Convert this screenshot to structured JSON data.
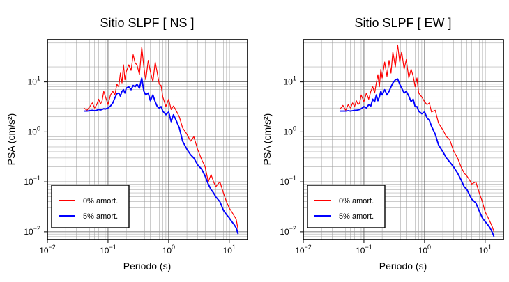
{
  "chart_data": [
    {
      "type": "line",
      "title": "Sitio SLPF [ NS ]",
      "xlabel": "Periodo (s)",
      "ylabel": "PSA (cm/s²)",
      "xscale": "log",
      "yscale": "log",
      "xlim": [
        0.01,
        20
      ],
      "ylim": [
        0.007,
        70
      ],
      "grid": true,
      "legend_position": "bottom-left",
      "x_ticks": [
        {
          "value": 0.01,
          "base": "10",
          "exp": "−2"
        },
        {
          "value": 0.1,
          "base": "10",
          "exp": "−1"
        },
        {
          "value": 1,
          "base": "10",
          "exp": "0"
        },
        {
          "value": 10,
          "base": "10",
          "exp": "1"
        }
      ],
      "y_ticks": [
        {
          "value": 0.01,
          "base": "10",
          "exp": "−2"
        },
        {
          "value": 0.1,
          "base": "10",
          "exp": "−1"
        },
        {
          "value": 1,
          "base": "10",
          "exp": "0"
        },
        {
          "value": 10,
          "base": "10",
          "exp": "1"
        }
      ],
      "series": [
        {
          "name": "0% amort.",
          "color": "#ff0000",
          "x": [
            0.04,
            0.045,
            0.05,
            0.055,
            0.06,
            0.065,
            0.07,
            0.075,
            0.08,
            0.085,
            0.09,
            0.1,
            0.11,
            0.12,
            0.13,
            0.14,
            0.15,
            0.16,
            0.17,
            0.18,
            0.19,
            0.2,
            0.22,
            0.24,
            0.26,
            0.28,
            0.3,
            0.33,
            0.36,
            0.39,
            0.42,
            0.46,
            0.5,
            0.55,
            0.6,
            0.65,
            0.7,
            0.75,
            0.8,
            0.9,
            1.0,
            1.1,
            1.2,
            1.3,
            1.5,
            1.7,
            2.0,
            2.3,
            2.6,
            3.0,
            3.5,
            4.0,
            4.5,
            5.0,
            5.5,
            6.0,
            7.0,
            8.0,
            9.0,
            10.0,
            11.0,
            12.0,
            13.0,
            14.0
          ],
          "y": [
            3.0,
            2.7,
            3.2,
            3.8,
            3.0,
            3.5,
            4.5,
            3.6,
            4.2,
            6.5,
            5.2,
            3.5,
            5.5,
            6.5,
            5.5,
            9.0,
            8.0,
            15.0,
            9.5,
            22.0,
            11.0,
            16.0,
            22.0,
            17.0,
            35.0,
            24.0,
            22.0,
            14.0,
            50.0,
            20.0,
            11.0,
            27.0,
            16.0,
            10.0,
            25.0,
            15.0,
            9.0,
            8.5,
            5.0,
            3.2,
            4.5,
            2.8,
            3.3,
            2.8,
            2.0,
            1.2,
            0.9,
            0.65,
            0.8,
            0.45,
            0.28,
            0.2,
            0.1,
            0.14,
            0.1,
            0.08,
            0.1,
            0.06,
            0.04,
            0.03,
            0.025,
            0.021,
            0.018,
            0.011
          ]
        },
        {
          "name": "5% amort.",
          "color": "#0000ff",
          "x": [
            0.04,
            0.045,
            0.05,
            0.055,
            0.06,
            0.065,
            0.07,
            0.075,
            0.08,
            0.085,
            0.09,
            0.1,
            0.11,
            0.12,
            0.13,
            0.14,
            0.15,
            0.16,
            0.17,
            0.18,
            0.19,
            0.2,
            0.22,
            0.24,
            0.26,
            0.28,
            0.3,
            0.33,
            0.36,
            0.39,
            0.42,
            0.46,
            0.5,
            0.55,
            0.6,
            0.65,
            0.7,
            0.75,
            0.8,
            0.9,
            1.0,
            1.1,
            1.2,
            1.3,
            1.5,
            1.7,
            2.0,
            2.3,
            2.6,
            3.0,
            3.5,
            4.0,
            4.5,
            5.0,
            5.5,
            6.0,
            7.0,
            8.0,
            9.0,
            10.0,
            11.0,
            12.0,
            13.0,
            14.0
          ],
          "y": [
            2.6,
            2.6,
            2.65,
            2.7,
            2.65,
            2.7,
            2.8,
            2.75,
            2.8,
            2.9,
            2.85,
            3.0,
            3.3,
            3.8,
            4.8,
            5.8,
            6.0,
            5.2,
            6.5,
            7.0,
            6.0,
            7.5,
            8.0,
            7.0,
            8.5,
            8.0,
            9.0,
            7.5,
            12.0,
            6.5,
            5.5,
            6.0,
            4.2,
            5.5,
            4.0,
            3.2,
            3.0,
            3.2,
            2.6,
            2.2,
            2.5,
            1.6,
            2.2,
            1.8,
            1.2,
            0.65,
            0.45,
            0.35,
            0.3,
            0.22,
            0.18,
            0.13,
            0.09,
            0.07,
            0.06,
            0.05,
            0.04,
            0.027,
            0.022,
            0.019,
            0.016,
            0.014,
            0.012,
            0.009
          ]
        }
      ]
    },
    {
      "type": "line",
      "title": "Sitio SLPF [ EW ]",
      "xlabel": "Periodo (s)",
      "ylabel": "PSA (cm/s²)",
      "xscale": "log",
      "yscale": "log",
      "xlim": [
        0.01,
        20
      ],
      "ylim": [
        0.007,
        70
      ],
      "grid": true,
      "legend_position": "bottom-left",
      "x_ticks": [
        {
          "value": 0.01,
          "base": "10",
          "exp": "−2"
        },
        {
          "value": 0.1,
          "base": "10",
          "exp": "−1"
        },
        {
          "value": 1,
          "base": "10",
          "exp": "0"
        },
        {
          "value": 10,
          "base": "10",
          "exp": "1"
        }
      ],
      "y_ticks": [
        {
          "value": 0.01,
          "base": "10",
          "exp": "−2"
        },
        {
          "value": 0.1,
          "base": "10",
          "exp": "−1"
        },
        {
          "value": 1,
          "base": "10",
          "exp": "0"
        },
        {
          "value": 10,
          "base": "10",
          "exp": "1"
        }
      ],
      "series": [
        {
          "name": "0% amort.",
          "color": "#ff0000",
          "x": [
            0.04,
            0.045,
            0.05,
            0.055,
            0.06,
            0.065,
            0.07,
            0.075,
            0.08,
            0.085,
            0.09,
            0.1,
            0.11,
            0.12,
            0.13,
            0.14,
            0.15,
            0.16,
            0.17,
            0.18,
            0.19,
            0.2,
            0.22,
            0.24,
            0.26,
            0.28,
            0.3,
            0.33,
            0.36,
            0.39,
            0.42,
            0.46,
            0.5,
            0.55,
            0.6,
            0.65,
            0.7,
            0.75,
            0.8,
            0.9,
            1.0,
            1.1,
            1.2,
            1.3,
            1.5,
            1.7,
            2.0,
            2.3,
            2.6,
            3.0,
            3.5,
            4.0,
            4.5,
            5.0,
            5.5,
            6.0,
            7.0,
            8.0,
            9.0,
            10.0,
            11.0,
            12.0,
            13.0,
            14.0
          ],
          "y": [
            2.8,
            3.4,
            2.7,
            3.5,
            3.0,
            3.8,
            3.2,
            4.2,
            3.5,
            3.8,
            5.5,
            4.0,
            6.0,
            4.5,
            6.5,
            8.0,
            6.0,
            9.5,
            14.0,
            8.0,
            18.0,
            12.0,
            25.0,
            13.0,
            27.0,
            15.0,
            40.0,
            20.0,
            55.0,
            25.0,
            40.0,
            18.0,
            28.0,
            12.0,
            18.0,
            13.0,
            8.0,
            12.0,
            6.0,
            5.0,
            4.0,
            3.5,
            3.8,
            2.5,
            2.7,
            1.5,
            1.1,
            0.8,
            0.7,
            0.42,
            0.3,
            0.2,
            0.15,
            0.13,
            0.11,
            0.09,
            0.1,
            0.06,
            0.04,
            0.025,
            0.02,
            0.016,
            0.013,
            0.01
          ]
        },
        {
          "name": "5% amort.",
          "color": "#0000ff",
          "x": [
            0.04,
            0.045,
            0.05,
            0.055,
            0.06,
            0.065,
            0.07,
            0.075,
            0.08,
            0.085,
            0.09,
            0.1,
            0.11,
            0.12,
            0.13,
            0.14,
            0.15,
            0.16,
            0.17,
            0.18,
            0.19,
            0.2,
            0.22,
            0.24,
            0.26,
            0.28,
            0.3,
            0.33,
            0.36,
            0.39,
            0.42,
            0.46,
            0.5,
            0.55,
            0.6,
            0.65,
            0.7,
            0.75,
            0.8,
            0.9,
            1.0,
            1.1,
            1.2,
            1.3,
            1.5,
            1.7,
            2.0,
            2.3,
            2.6,
            3.0,
            3.5,
            4.0,
            4.5,
            5.0,
            5.5,
            6.0,
            7.0,
            8.0,
            9.0,
            10.0,
            11.0,
            12.0,
            13.0,
            14.0
          ],
          "y": [
            2.6,
            2.6,
            2.6,
            2.65,
            2.6,
            2.65,
            2.7,
            2.7,
            2.75,
            2.8,
            2.9,
            3.2,
            3.0,
            3.5,
            3.3,
            4.5,
            4.0,
            5.5,
            4.2,
            5.0,
            6.5,
            5.5,
            7.0,
            5.5,
            6.5,
            8.0,
            9.5,
            11.0,
            11.5,
            9.0,
            7.5,
            6.0,
            6.5,
            5.2,
            4.0,
            4.5,
            3.2,
            3.2,
            2.6,
            2.3,
            2.5,
            1.9,
            1.7,
            1.3,
            0.9,
            0.55,
            0.4,
            0.3,
            0.25,
            0.2,
            0.15,
            0.11,
            0.08,
            0.07,
            0.055,
            0.045,
            0.038,
            0.026,
            0.019,
            0.016,
            0.014,
            0.012,
            0.01,
            0.008
          ]
        }
      ]
    }
  ]
}
